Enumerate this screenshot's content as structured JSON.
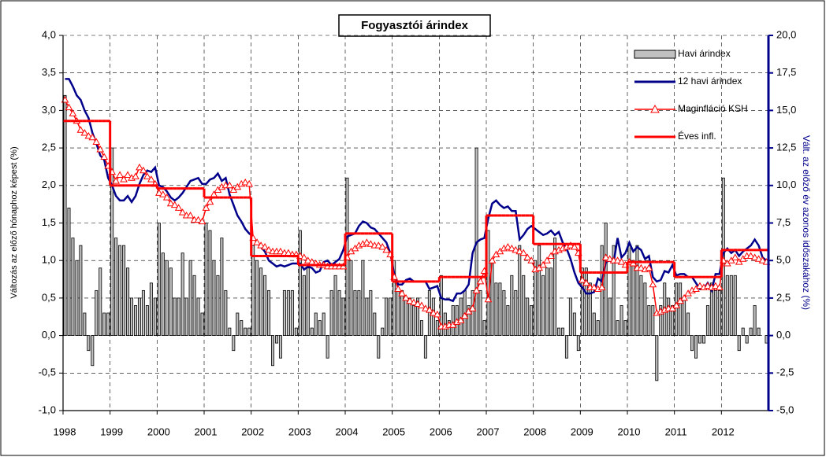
{
  "chart_data": {
    "type": "combo",
    "title": "Fogyasztói árindex",
    "ylabel": "Változás az előző hónaphoz képest (%)",
    "y2label": "Vált. az előző év azonos időszakához (%)",
    "ylim": [
      -1,
      4
    ],
    "yticks": [
      {
        "value": -1,
        "label": "-1,0"
      },
      {
        "value": -0.5,
        "label": "-0,5"
      },
      {
        "value": 0,
        "label": "0,0"
      },
      {
        "value": 0.5,
        "label": "0,5"
      },
      {
        "value": 1,
        "label": "1,0"
      },
      {
        "value": 1.5,
        "label": "1,5"
      },
      {
        "value": 2,
        "label": "2,0"
      },
      {
        "value": 2.5,
        "label": "2,5"
      },
      {
        "value": 3,
        "label": "3,0"
      },
      {
        "value": 3.5,
        "label": "3,5"
      },
      {
        "value": 4,
        "label": "4,0"
      }
    ],
    "y2lim": [
      -5,
      20
    ],
    "y2ticks": [
      {
        "value": -5,
        "label": "-5,0"
      },
      {
        "value": -2.5,
        "label": "-2,5"
      },
      {
        "value": 0,
        "label": "0,0"
      },
      {
        "value": 2.5,
        "label": "2,5"
      },
      {
        "value": 5,
        "label": "5,0"
      },
      {
        "value": 7.5,
        "label": "7,5"
      },
      {
        "value": 10,
        "label": "10,0"
      },
      {
        "value": 12.5,
        "label": "12,5"
      },
      {
        "value": 15,
        "label": "15,0"
      },
      {
        "value": 17.5,
        "label": "17,5"
      },
      {
        "value": 20,
        "label": "20,0"
      }
    ],
    "grid": true,
    "categories": [
      "1998",
      null,
      null,
      null,
      null,
      null,
      null,
      null,
      null,
      null,
      null,
      null,
      "1999",
      null,
      null,
      null,
      null,
      null,
      null,
      null,
      null,
      null,
      null,
      null,
      "2000",
      null,
      null,
      null,
      null,
      null,
      null,
      null,
      null,
      null,
      null,
      null,
      "2001",
      null,
      null,
      null,
      null,
      null,
      null,
      null,
      null,
      null,
      null,
      null,
      "2002",
      null,
      null,
      null,
      null,
      null,
      null,
      null,
      null,
      null,
      null,
      null,
      "2003",
      null,
      null,
      null,
      null,
      null,
      null,
      null,
      null,
      null,
      null,
      null,
      "2004",
      null,
      null,
      null,
      null,
      null,
      null,
      null,
      null,
      null,
      null,
      null,
      "2005",
      null,
      null,
      null,
      null,
      null,
      null,
      null,
      null,
      null,
      null,
      null,
      "2006",
      null,
      null,
      null,
      null,
      null,
      null,
      null,
      null,
      null,
      null,
      null,
      "2007",
      null,
      null,
      null,
      null,
      null,
      null,
      null,
      null,
      null,
      null,
      null,
      "2008",
      null,
      null,
      null,
      null,
      null,
      null,
      null,
      null,
      null,
      null,
      null,
      "2009",
      null,
      null,
      null,
      null,
      null,
      null,
      null,
      null,
      null,
      null,
      null,
      "2010",
      null,
      null,
      null,
      null,
      null,
      null,
      null,
      null,
      null,
      null,
      null,
      "2011",
      null,
      null,
      null,
      null,
      null,
      null,
      null,
      null,
      null,
      null,
      null,
      "2012",
      null,
      null,
      null,
      null,
      null,
      null,
      null,
      null,
      null,
      null,
      null
    ],
    "series": [
      {
        "name": "Havi árindex",
        "kind": "bar",
        "axis": "y",
        "color": "#c0c0c0",
        "values": [
          3.2,
          1.7,
          1.3,
          1.0,
          1.2,
          0.3,
          -0.2,
          -0.4,
          0.6,
          0.9,
          0.3,
          0.3,
          2.5,
          1.3,
          1.2,
          1.2,
          0.9,
          0.5,
          0.4,
          0.5,
          0.6,
          0.4,
          0.7,
          0.5,
          1.5,
          1.1,
          1.0,
          0.9,
          0.5,
          0.5,
          1.1,
          0.5,
          1.0,
          0.8,
          0.5,
          0.3,
          1.5,
          1.4,
          1.0,
          0.8,
          1.3,
          0.6,
          0.1,
          -0.2,
          0.3,
          0.2,
          0.1,
          0.1,
          1.2,
          1.0,
          0.9,
          0.8,
          0.6,
          -0.4,
          -0.1,
          -0.3,
          0.6,
          0.6,
          0.6,
          0.1,
          1.4,
          0.8,
          0.9,
          0.1,
          0.3,
          0.2,
          0.3,
          -0.3,
          0.6,
          0.8,
          0.6,
          0.5,
          2.1,
          1.0,
          0.6,
          0.6,
          1.0,
          0.5,
          0.6,
          0.3,
          -0.3,
          0.1,
          0.5,
          0.5,
          1.0,
          0.6,
          0.6,
          0.5,
          0.5,
          0.4,
          0.5,
          0.2,
          -0.3,
          0.6,
          0.5,
          0.2,
          0.8,
          0.3,
          0.2,
          0.4,
          0.4,
          0.5,
          0.6,
          0.4,
          0.6,
          2.5,
          0.6,
          0.2,
          1.4,
          1.0,
          0.7,
          0.7,
          0.6,
          0.4,
          0.8,
          0.6,
          1.2,
          0.8,
          0.5,
          0.4,
          1.0,
          1.2,
          0.8,
          0.9,
          0.9,
          1.3,
          0.1,
          0.1,
          -0.3,
          0.5,
          0.3,
          -0.2,
          0.9,
          0.9,
          0.7,
          0.3,
          0.2,
          1.2,
          1.5,
          0.5,
          1.2,
          0.2,
          0.4,
          0.2,
          1.2,
          1.0,
          1.2,
          0.8,
          0.7,
          0.4,
          0.4,
          -0.6,
          0.4,
          0.7,
          0.5,
          0.4,
          0.7,
          0.7,
          0.5,
          0.3,
          -0.2,
          -0.3,
          -0.1,
          -0.1,
          0.4,
          0.7,
          0.6,
          0.6,
          2.1,
          0.8,
          0.8,
          0.8,
          -0.2,
          0.1,
          -0.1,
          0.1,
          0.4,
          0.1,
          0.0,
          -0.1
        ]
      },
      {
        "name": "12 havi árindex",
        "kind": "line",
        "axis": "y2",
        "color": "#00008b",
        "values": [
          17.1,
          17.1,
          16.6,
          16.0,
          15.7,
          15.0,
          14.5,
          13.5,
          12.8,
          12.0,
          11.7,
          10.5,
          10.0,
          9.3,
          9.0,
          9.0,
          9.3,
          8.9,
          9.3,
          10.1,
          10.7,
          11.0,
          10.9,
          11.2,
          10.0,
          9.9,
          9.6,
          9.2,
          9.0,
          9.2,
          9.5,
          9.9,
          10.3,
          10.4,
          10.5,
          10.1,
          10.1,
          10.4,
          10.5,
          10.8,
          10.3,
          10.5,
          9.4,
          8.7,
          8.0,
          7.6,
          7.1,
          6.8,
          6.6,
          6.2,
          5.9,
          5.6,
          5.0,
          4.8,
          4.6,
          4.7,
          4.6,
          4.7,
          4.8,
          4.8,
          4.8,
          4.4,
          4.6,
          4.5,
          4.2,
          4.3,
          4.9,
          5.0,
          4.7,
          4.9,
          5.1,
          5.7,
          6.6,
          6.7,
          6.8,
          7.3,
          7.6,
          7.5,
          7.2,
          7.1,
          6.8,
          6.5,
          6.2,
          5.5,
          4.1,
          3.4,
          3.4,
          3.7,
          3.8,
          3.6,
          3.6,
          3.6,
          3.6,
          3.1,
          3.2,
          3.3,
          2.5,
          2.4,
          2.4,
          2.3,
          2.8,
          2.8,
          3.0,
          3.4,
          5.5,
          6.2,
          6.4,
          6.5,
          7.8,
          8.8,
          9.0,
          8.7,
          8.5,
          8.6,
          8.3,
          8.3,
          6.4,
          6.7,
          7.1,
          7.3,
          7.1,
          6.9,
          6.7,
          6.8,
          7.0,
          6.7,
          6.9,
          6.2,
          5.8,
          5.1,
          4.2,
          3.5,
          3.2,
          2.8,
          2.8,
          2.9,
          3.8,
          3.6,
          4.9,
          5.0,
          4.9,
          6.5,
          5.2,
          5.5,
          6.2,
          5.6,
          5.9,
          5.7,
          5.1,
          5.3,
          3.9,
          3.6,
          3.7,
          4.3,
          4.2,
          4.7,
          4.0,
          4.1,
          4.1,
          3.9,
          3.9,
          3.5,
          3.1,
          3.1,
          3.5,
          3.0,
          4.1,
          4.1,
          5.5,
          5.8,
          5.5,
          5.7,
          5.3,
          5.6,
          5.8,
          6.0,
          6.4,
          6.0,
          5.2,
          5.0
        ]
      },
      {
        "name": "Maginfláció KSH",
        "kind": "marker-line",
        "axis": "y2",
        "color": "#ff0000",
        "values": [
          15.7,
          15.2,
          14.8,
          14.3,
          13.7,
          13.5,
          13.3,
          13.2,
          12.9,
          12.4,
          11.9,
          11.3,
          10.9,
          10.3,
          10.7,
          10.4,
          10.7,
          10.5,
          10.6,
          11.2,
          11.0,
          10.6,
          10.4,
          10.1,
          9.5,
          9.4,
          9.2,
          8.8,
          8.7,
          8.5,
          8.2,
          8.0,
          8.0,
          7.7,
          7.7,
          7.6,
          8.5,
          8.9,
          9.4,
          9.7,
          9.9,
          10.0,
          10.0,
          9.7,
          9.9,
          10.1,
          10.2,
          10.1,
          6.5,
          6.2,
          6.0,
          5.9,
          5.7,
          5.6,
          5.6,
          5.6,
          5.5,
          5.5,
          5.4,
          5.4,
          5.3,
          5.2,
          5.0,
          4.9,
          4.8,
          4.7,
          4.7,
          4.6,
          4.6,
          4.6,
          4.6,
          4.6,
          5.2,
          5.6,
          5.8,
          6.0,
          6.1,
          6.2,
          6.1,
          6.0,
          6.0,
          5.9,
          5.7,
          5.4,
          3.9,
          3.1,
          2.8,
          2.5,
          2.3,
          2.2,
          2.1,
          2.0,
          1.8,
          1.7,
          1.5,
          1.4,
          0.6,
          0.6,
          0.7,
          0.7,
          0.9,
          1.0,
          1.3,
          1.6,
          1.8,
          3.0,
          3.6,
          4.3,
          2.4,
          5.0,
          5.4,
          5.6,
          5.8,
          5.9,
          5.8,
          5.7,
          5.6,
          5.5,
          5.2,
          5.0,
          4.4,
          4.5,
          4.7,
          5.0,
          5.3,
          5.6,
          5.7,
          5.8,
          5.9,
          6.0,
          5.9,
          5.5,
          3.7,
          3.5,
          3.2,
          3.2,
          3.1,
          3.2,
          5.2,
          5.1,
          5.0,
          5.0,
          4.9,
          4.7,
          4.9,
          4.8,
          4.5,
          4.5,
          4.4,
          4.5,
          3.4,
          1.5,
          1.6,
          1.7,
          1.8,
          1.8,
          2.0,
          2.3,
          2.5,
          2.8,
          3.0,
          3.1,
          3.3,
          3.2,
          3.3,
          3.2,
          3.3,
          3.2,
          5.0,
          4.8,
          5.0,
          5.2,
          4.9,
          5.1,
          5.3,
          5.3,
          5.2,
          5.1,
          5.0,
          4.9
        ]
      },
      {
        "name": "Éves infl.",
        "kind": "step",
        "axis": "y2",
        "color": "#ff0000",
        "values": [
          14.3,
          14.3,
          14.3,
          14.3,
          14.3,
          14.3,
          14.3,
          14.3,
          14.3,
          14.3,
          14.3,
          14.3,
          10.0,
          10.0,
          10.0,
          10.0,
          10.0,
          10.0,
          10.0,
          10.0,
          10.0,
          10.0,
          10.0,
          10.0,
          9.8,
          9.8,
          9.8,
          9.8,
          9.8,
          9.8,
          9.8,
          9.8,
          9.8,
          9.8,
          9.8,
          9.8,
          9.2,
          9.2,
          9.2,
          9.2,
          9.2,
          9.2,
          9.2,
          9.2,
          9.2,
          9.2,
          9.2,
          9.2,
          5.3,
          5.3,
          5.3,
          5.3,
          5.3,
          5.3,
          5.3,
          5.3,
          5.3,
          5.3,
          5.3,
          5.3,
          4.7,
          4.7,
          4.7,
          4.7,
          4.7,
          4.7,
          4.7,
          4.7,
          4.7,
          4.7,
          4.7,
          4.7,
          6.8,
          6.8,
          6.8,
          6.8,
          6.8,
          6.8,
          6.8,
          6.8,
          6.8,
          6.8,
          6.8,
          6.8,
          3.6,
          3.6,
          3.6,
          3.6,
          3.6,
          3.6,
          3.6,
          3.6,
          3.6,
          3.6,
          3.6,
          3.6,
          3.9,
          3.9,
          3.9,
          3.9,
          3.9,
          3.9,
          3.9,
          3.9,
          3.9,
          3.9,
          3.9,
          3.9,
          8.0,
          8.0,
          8.0,
          8.0,
          8.0,
          8.0,
          8.0,
          8.0,
          8.0,
          8.0,
          8.0,
          8.0,
          6.1,
          6.1,
          6.1,
          6.1,
          6.1,
          6.1,
          6.1,
          6.1,
          6.1,
          6.1,
          6.1,
          6.1,
          4.2,
          4.2,
          4.2,
          4.2,
          4.2,
          4.2,
          4.2,
          4.2,
          4.2,
          4.2,
          4.2,
          4.2,
          4.9,
          4.9,
          4.9,
          4.9,
          4.9,
          4.9,
          4.9,
          4.9,
          4.9,
          4.9,
          4.9,
          4.9,
          3.9,
          3.9,
          3.9,
          3.9,
          3.9,
          3.9,
          3.9,
          3.9,
          3.9,
          3.9,
          3.9,
          3.9,
          5.7,
          5.7,
          5.7,
          5.7,
          5.7,
          5.7,
          5.7,
          5.7,
          5.7,
          5.7,
          5.7,
          5.7
        ]
      }
    ]
  }
}
